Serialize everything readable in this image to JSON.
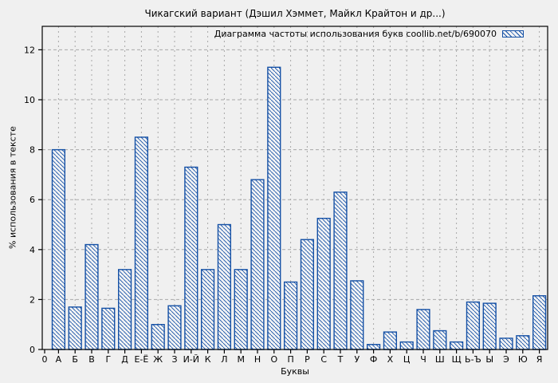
{
  "figure": {
    "background": "#f0f0f0"
  },
  "chart_data": {
    "type": "bar",
    "title": "Чикагский вариант (Дэшил Хэммет, Майкл Крайтон и др...)",
    "legend": "Диаграмма частоты использования букв coollib.net/b/690070",
    "legend_position": "top-right-inside",
    "xlabel": "Буквы",
    "ylabel": "% использования в тексте",
    "origin_label": "0",
    "categories": [
      "А",
      "Б",
      "В",
      "Г",
      "Д",
      "Е-Ё",
      "Ж",
      "З",
      "И-Й",
      "К",
      "Л",
      "М",
      "Н",
      "О",
      "П",
      "Р",
      "С",
      "Т",
      "У",
      "Ф",
      "Х",
      "Ц",
      "Ч",
      "Ш",
      "Щ",
      "Ь-Ъ",
      "Ы",
      "Э",
      "Ю",
      "Я"
    ],
    "values": [
      8.0,
      1.7,
      4.2,
      1.65,
      3.2,
      8.5,
      1.0,
      1.75,
      7.3,
      3.2,
      5.0,
      3.2,
      6.8,
      11.3,
      2.7,
      4.4,
      5.25,
      6.3,
      2.75,
      0.2,
      0.7,
      0.3,
      1.6,
      0.75,
      0.3,
      1.9,
      1.85,
      0.45,
      0.55,
      2.15
    ],
    "ylim": [
      0,
      12.95
    ],
    "yticks": [
      0,
      2,
      4,
      6,
      8,
      10,
      12
    ],
    "grid": "dashed horizontal and vertical",
    "bar_style": "diagonal backslash hatch",
    "colors": {
      "bar_stroke": "#1450a5",
      "bar_fill": "#f2f3f5",
      "grid": "#a8a8a8",
      "frame": "#000000",
      "background": "#f0f0f0",
      "text": "#000000"
    }
  }
}
